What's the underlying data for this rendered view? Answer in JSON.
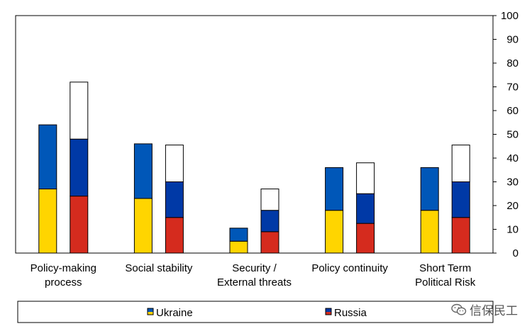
{
  "chart_data": {
    "type": "bar",
    "stacked": true,
    "categories": [
      [
        "Policy-making",
        "process"
      ],
      [
        "Social stability"
      ],
      [
        "Security /",
        "External threats"
      ],
      [
        "Policy continuity"
      ],
      [
        "Short Term",
        "Political Risk"
      ]
    ],
    "y_axis": {
      "position": "right",
      "ylim": [
        0,
        100
      ],
      "ticks": [
        0,
        10,
        20,
        30,
        40,
        50,
        60,
        70,
        80,
        90,
        100
      ]
    },
    "grid": false,
    "legend": {
      "placement": "bottom",
      "entries": [
        "Ukraine",
        "Russia"
      ]
    },
    "countries": [
      {
        "name": "Ukraine",
        "segments": [
          {
            "color": "#FFD500",
            "values": [
              27,
              23,
              5,
              18,
              18
            ]
          },
          {
            "color": "#0057B8",
            "values": [
              27,
              23,
              5.5,
              18,
              18
            ]
          }
        ]
      },
      {
        "name": "Russia",
        "segments": [
          {
            "color": "#D52B1E",
            "values": [
              24,
              15,
              9,
              12.5,
              15
            ]
          },
          {
            "color": "#0039A6",
            "values": [
              24,
              15,
              9,
              12.5,
              15
            ]
          },
          {
            "color": "#FFFFFF",
            "values": [
              24,
              15.5,
              9,
              13,
              15.5
            ]
          }
        ]
      }
    ]
  },
  "watermark": {
    "text": "信保民工"
  }
}
